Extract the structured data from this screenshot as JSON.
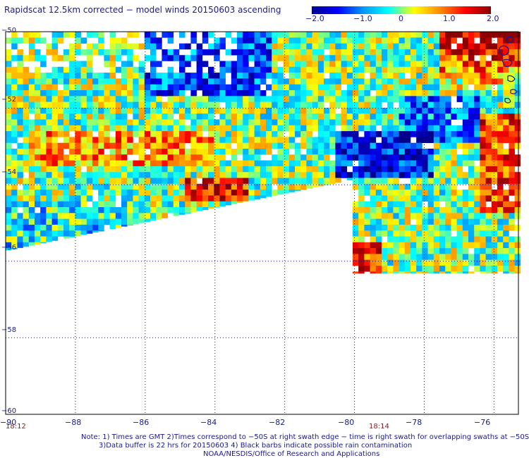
{
  "title": "Rapidscat 12.5km corrected − model winds 20150603 ascending",
  "colorbar": {
    "ticks": [
      "−2.0",
      "−1.0",
      "0",
      "1.0",
      "2.0"
    ],
    "tick_values": [
      -2.0,
      -1.0,
      0,
      1.0,
      2.0
    ],
    "range": [
      -2.0,
      2.0
    ],
    "colors": [
      "#00008b",
      "#0000ff",
      "#0096ff",
      "#00ffff",
      "#ffff00",
      "#ff8c00",
      "#ff0000",
      "#8b0000"
    ]
  },
  "axes": {
    "lon_ticks": [
      "−90",
      "−88",
      "−86",
      "−84",
      "−82",
      "−80",
      "−78",
      "−76"
    ],
    "lon_values": [
      -90,
      -88,
      -86,
      -84,
      -82,
      -80,
      -78,
      -76
    ],
    "lat_ticks": [
      "−50",
      "−52",
      "−54",
      "−56",
      "−58",
      "−60"
    ],
    "lat_values": [
      -50,
      -52,
      -54,
      -56,
      -58,
      -60
    ],
    "lon_range": [
      -90,
      -75.3
    ],
    "lat_range": [
      -60,
      -50
    ],
    "grid": "dotted"
  },
  "times": [
    {
      "label": "18:12",
      "lon": -90
    },
    {
      "label": "18:14",
      "lon": -79.3
    }
  ],
  "notes": {
    "line1": "Note: 1) Times are GMT 2)Times correspond to −50S at right swath edge − time is right swath for overlapping swaths at −50S",
    "line2": "3)Data buffer is 22 hrs for 20150603 4) Black barbs indicate possible rain contamination",
    "line3": "NOAA/NESDIS/Office of Research and Applications"
  }
}
